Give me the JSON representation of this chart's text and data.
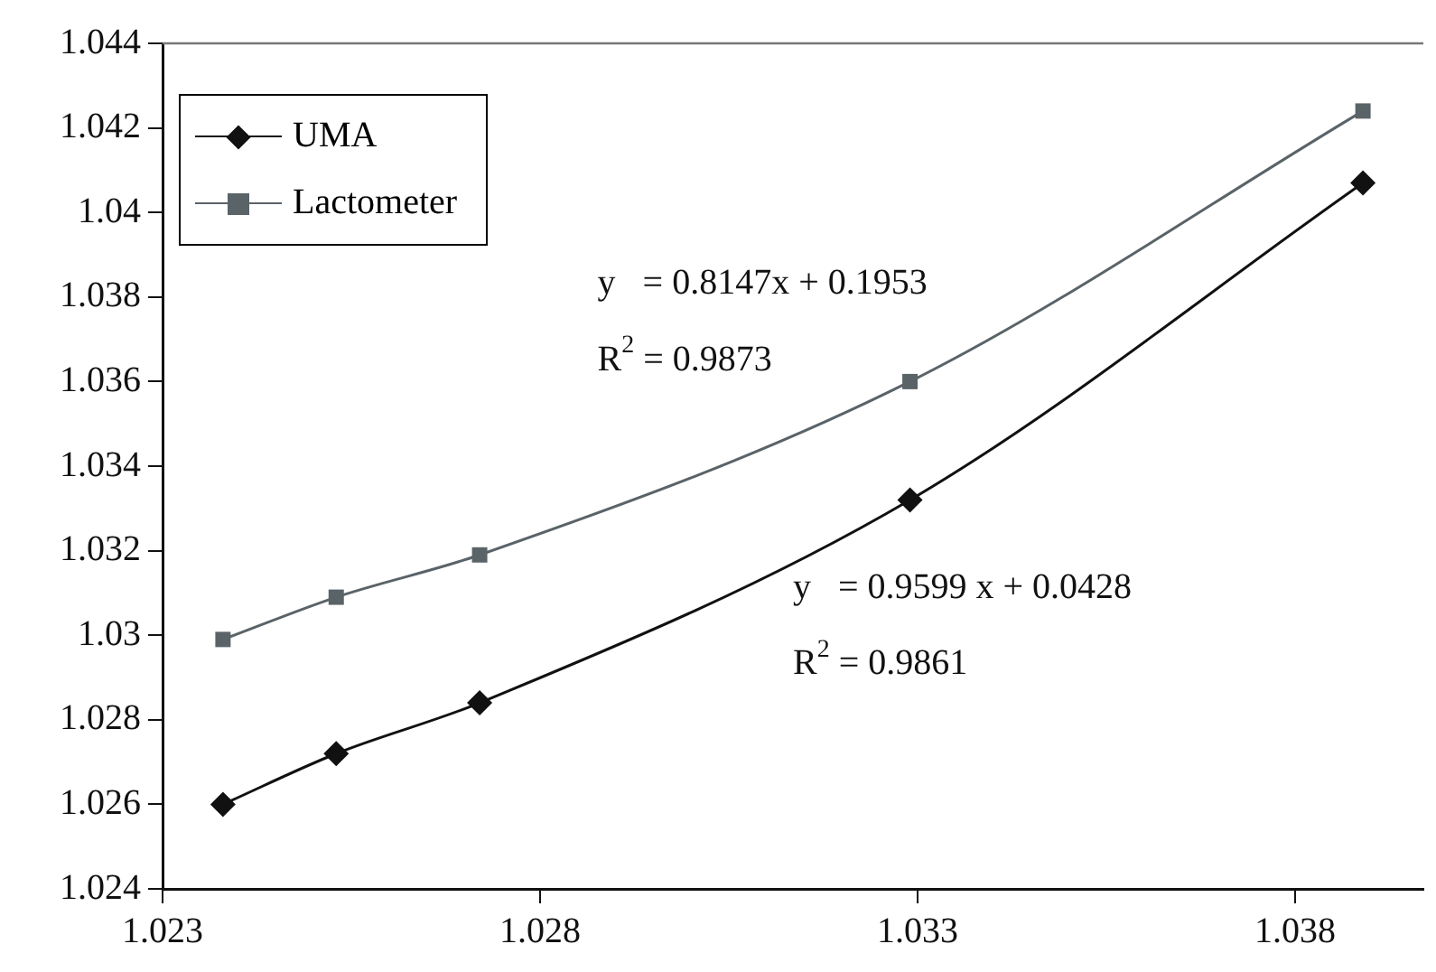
{
  "chart_data": {
    "type": "line",
    "series": [
      {
        "name": "UMA",
        "color": "#111111",
        "marker": "diamond",
        "x": [
          1.0238,
          1.0253,
          1.0272,
          1.0329,
          1.0389
        ],
        "values": [
          1.026,
          1.0272,
          1.0284,
          1.0332,
          1.0407
        ]
      },
      {
        "name": "Lactometer",
        "color": "#5a6368",
        "marker": "square",
        "x": [
          1.0238,
          1.0253,
          1.0272,
          1.0329,
          1.0389
        ],
        "values": [
          1.0299,
          1.0309,
          1.0319,
          1.036,
          1.0424
        ]
      }
    ],
    "xlim": [
      1.023,
      1.0397
    ],
    "xticks": [
      1.023,
      1.028,
      1.033,
      1.038
    ],
    "ylim": [
      1.024,
      1.044
    ],
    "yticks": [
      1.024,
      1.026,
      1.028,
      1.03,
      1.032,
      1.034,
      1.036,
      1.038,
      1.04,
      1.042,
      1.044
    ],
    "annotations": [
      "y   = 0.8147x + 0.1953",
      "R$^{2}$ = 0.9873",
      "y   = 0.9599 x + 0.0428",
      "R$^{2}$ = 0.9861"
    ],
    "legend": "top left",
    "grid": false,
    "line_style": "solid"
  }
}
